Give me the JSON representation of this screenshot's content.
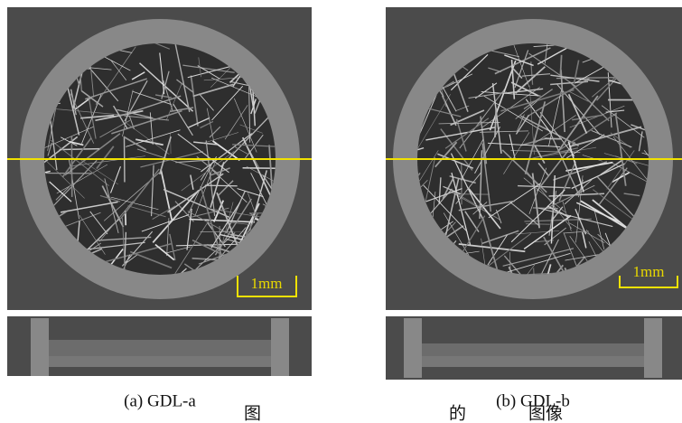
{
  "panels": [
    {
      "label": "(a) GDL-a",
      "scale_bar": "1mm"
    },
    {
      "label": "(b) GDL-b",
      "scale_bar": "1mm"
    }
  ],
  "caption": {
    "parts": [
      "图",
      "的",
      "图像"
    ]
  }
}
